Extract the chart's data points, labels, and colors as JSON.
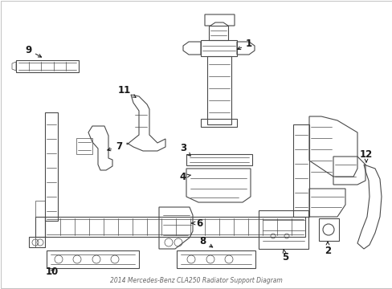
{
  "title": "2014 Mercedes-Benz CLA250 Radiator Support Diagram",
  "background_color": "#ffffff",
  "line_color": "#4a4a4a",
  "text_color": "#1a1a1a",
  "fig_width": 4.89,
  "fig_height": 3.6,
  "dpi": 100,
  "border_color": "#cccccc"
}
